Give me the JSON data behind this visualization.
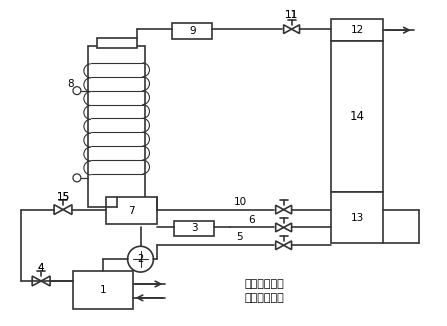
{
  "bg_color": "#ffffff",
  "line_color": "#333333",
  "line_width": 1.2,
  "label_fontsize": 7.5,
  "chinese_fontsize": 8,
  "legend_text1": "自冷却水管网",
  "legend_text2": "至循环水管网"
}
